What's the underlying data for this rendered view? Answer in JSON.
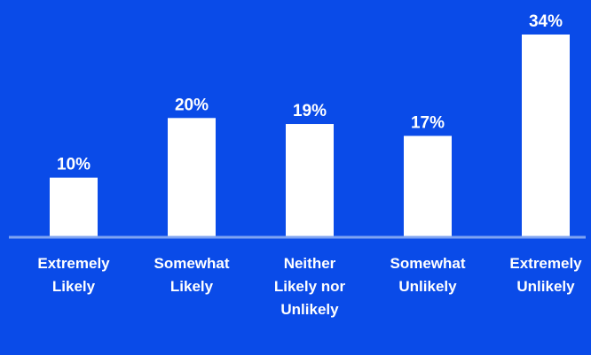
{
  "colors": {
    "background": "#0a4be8",
    "bar": "#ffffff",
    "baseline": "#7fa4f2",
    "text": "#ffffff"
  },
  "chart_data": {
    "type": "bar",
    "categories": [
      [
        "Extremely",
        "Likely"
      ],
      [
        "Somewhat",
        "Likely"
      ],
      [
        "Neither",
        "Likely nor",
        "Unlikely"
      ],
      [
        "Somewhat",
        "Unlikely"
      ],
      [
        "Extremely",
        "Unlikely"
      ]
    ],
    "values": [
      10,
      20,
      19,
      17,
      34
    ],
    "value_labels": [
      "10%",
      "20%",
      "19%",
      "17%",
      "34%"
    ],
    "ylim": [
      0,
      34
    ],
    "grid": false,
    "legend": "none"
  }
}
